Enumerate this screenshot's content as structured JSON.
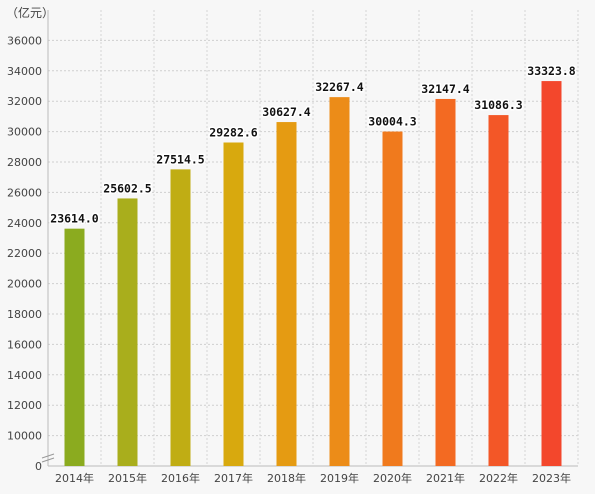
{
  "chart_data": {
    "type": "bar",
    "unit_label": "（亿元）",
    "categories": [
      "2014年",
      "2015年",
      "2016年",
      "2017年",
      "2018年",
      "2019年",
      "2020年",
      "2021年",
      "2022年",
      "2023年"
    ],
    "values": [
      23614.0,
      25602.5,
      27514.5,
      29282.6,
      30627.4,
      32267.4,
      30004.3,
      32147.4,
      31086.3,
      33323.8
    ],
    "value_labels": [
      "23614.0",
      "25602.5",
      "27514.5",
      "29282.6",
      "30627.4",
      "32267.4",
      "30004.3",
      "32147.4",
      "31086.3",
      "33323.8"
    ],
    "bar_colors": [
      "#8bab1f",
      "#a9ae1c",
      "#c0ad14",
      "#d8a90e",
      "#e59b12",
      "#ec8c18",
      "#f07a1d",
      "#f36a22",
      "#f35727",
      "#f3472c"
    ],
    "y_ticks": [
      0,
      10000,
      12000,
      14000,
      16000,
      18000,
      20000,
      22000,
      24000,
      26000,
      28000,
      30000,
      32000,
      34000,
      36000
    ],
    "y_tick_labels": [
      "0",
      "10000",
      "12000",
      "14000",
      "16000",
      "18000",
      "20000",
      "22000",
      "24000",
      "26000",
      "28000",
      "30000",
      "32000",
      "34000",
      "36000"
    ],
    "ylim": [
      8000,
      38000
    ],
    "axis_break": true,
    "grid": true,
    "legend": "none"
  }
}
